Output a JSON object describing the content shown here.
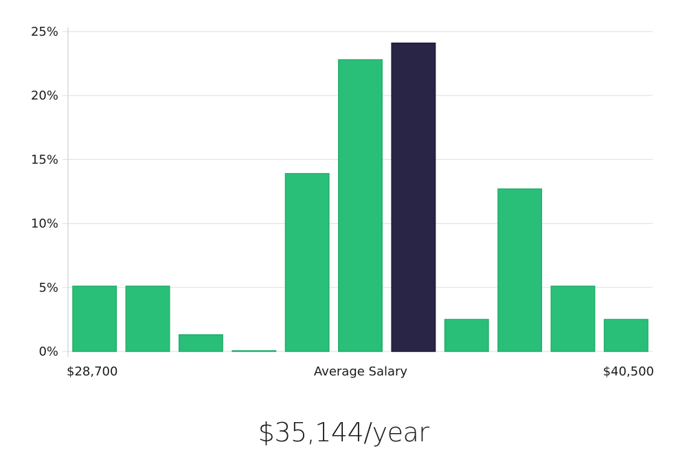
{
  "chart_data": {
    "type": "bar",
    "categories": [
      "1",
      "2",
      "3",
      "4",
      "5",
      "6",
      "7",
      "8",
      "9",
      "10",
      "11"
    ],
    "values": [
      5.1,
      5.1,
      1.3,
      0.05,
      13.9,
      22.8,
      24.1,
      2.5,
      12.7,
      5.1,
      2.5
    ],
    "highlight_index": 6,
    "y_ticks": [
      "0%",
      "5%",
      "10%",
      "15%",
      "20%",
      "25%"
    ],
    "y_tick_values": [
      0,
      5,
      10,
      15,
      20,
      25
    ],
    "ylim": [
      0,
      25
    ],
    "x_labels": {
      "left": "$28,700",
      "center": "Average Salary",
      "right": "$40,500"
    },
    "grid": true,
    "colors": {
      "bar": "#2abf78",
      "bar_edge": "#24ad6c",
      "highlight": "#292546",
      "grid": "#e3e3e3",
      "axis": "#d0d0d0"
    }
  },
  "salary_text": "$35,144/year"
}
